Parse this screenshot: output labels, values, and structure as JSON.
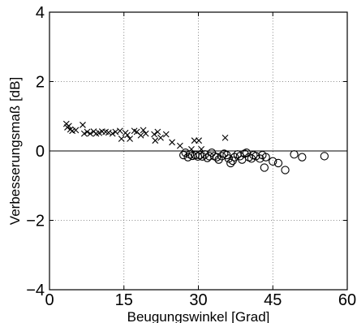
{
  "chart_data": {
    "type": "scatter",
    "title": "",
    "xlabel": "Beugungswinkel [Grad]",
    "ylabel": "Verbesserungsmaß [dB]",
    "xlim": [
      0,
      60
    ],
    "ylim": [
      -4,
      4
    ],
    "xticks": [
      0,
      15,
      30,
      45,
      60
    ],
    "yticks": [
      -4,
      -2,
      0,
      2,
      4
    ],
    "xtick_labels": [
      "0",
      "15",
      "30",
      "45",
      "60"
    ],
    "ytick_labels": [
      "−4",
      "−2",
      "0",
      "2",
      "4"
    ],
    "grid": true,
    "grid_style": "dotted",
    "reference_line_y": 0,
    "series": [
      {
        "marker": "x",
        "color": "#000000",
        "points": [
          [
            3.4,
            0.78
          ],
          [
            3.6,
            0.68
          ],
          [
            3.9,
            0.72
          ],
          [
            4.2,
            0.62
          ],
          [
            4.6,
            0.58
          ],
          [
            5.3,
            0.6
          ],
          [
            6.7,
            0.75
          ],
          [
            7.0,
            0.5
          ],
          [
            7.6,
            0.55
          ],
          [
            8.2,
            0.5
          ],
          [
            8.9,
            0.56
          ],
          [
            9.4,
            0.5
          ],
          [
            10.0,
            0.52
          ],
          [
            10.6,
            0.56
          ],
          [
            11.3,
            0.55
          ],
          [
            11.9,
            0.53
          ],
          [
            12.7,
            0.5
          ],
          [
            13.3,
            0.55
          ],
          [
            14.2,
            0.58
          ],
          [
            14.5,
            0.35
          ],
          [
            15.3,
            0.52
          ],
          [
            15.7,
            0.46
          ],
          [
            16.2,
            0.35
          ],
          [
            17.1,
            0.58
          ],
          [
            17.6,
            0.55
          ],
          [
            18.4,
            0.45
          ],
          [
            18.9,
            0.6
          ],
          [
            19.4,
            0.5
          ],
          [
            21.1,
            0.48
          ],
          [
            21.3,
            0.3
          ],
          [
            21.8,
            0.55
          ],
          [
            22.4,
            0.38
          ],
          [
            23.5,
            0.48
          ],
          [
            24.7,
            0.25
          ],
          [
            26.3,
            0.15
          ],
          [
            28.6,
            0.05
          ],
          [
            29.2,
            0.3
          ],
          [
            30.1,
            0.3
          ],
          [
            30.6,
            0.05
          ],
          [
            35.4,
            0.38
          ]
        ]
      },
      {
        "marker": "o",
        "color": "#000000",
        "points": [
          [
            27.0,
            -0.12
          ],
          [
            27.4,
            -0.05
          ],
          [
            27.9,
            -0.18
          ],
          [
            28.3,
            -0.1
          ],
          [
            28.8,
            -0.14
          ],
          [
            29.4,
            -0.12
          ],
          [
            29.9,
            -0.16
          ],
          [
            30.3,
            -0.12
          ],
          [
            30.8,
            -0.16
          ],
          [
            31.3,
            -0.1
          ],
          [
            31.8,
            -0.2
          ],
          [
            32.2,
            -0.15
          ],
          [
            32.7,
            -0.05
          ],
          [
            33.2,
            -0.15
          ],
          [
            33.7,
            -0.18
          ],
          [
            34.1,
            -0.25
          ],
          [
            34.7,
            -0.15
          ],
          [
            35.2,
            -0.08
          ],
          [
            35.7,
            -0.12
          ],
          [
            36.1,
            -0.22
          ],
          [
            36.5,
            -0.35
          ],
          [
            36.9,
            -0.28
          ],
          [
            37.3,
            -0.18
          ],
          [
            37.9,
            -0.1
          ],
          [
            38.4,
            -0.15
          ],
          [
            38.8,
            -0.25
          ],
          [
            39.3,
            -0.08
          ],
          [
            39.7,
            -0.05
          ],
          [
            40.2,
            -0.18
          ],
          [
            40.7,
            -0.22
          ],
          [
            41.1,
            -0.12
          ],
          [
            41.6,
            -0.15
          ],
          [
            42.4,
            -0.22
          ],
          [
            42.9,
            -0.12
          ],
          [
            43.3,
            -0.48
          ],
          [
            43.6,
            -0.18
          ],
          [
            45.0,
            -0.3
          ],
          [
            46.1,
            -0.35
          ],
          [
            47.5,
            -0.55
          ],
          [
            49.3,
            -0.1
          ],
          [
            50.9,
            -0.18
          ],
          [
            55.4,
            -0.15
          ]
        ]
      }
    ]
  }
}
